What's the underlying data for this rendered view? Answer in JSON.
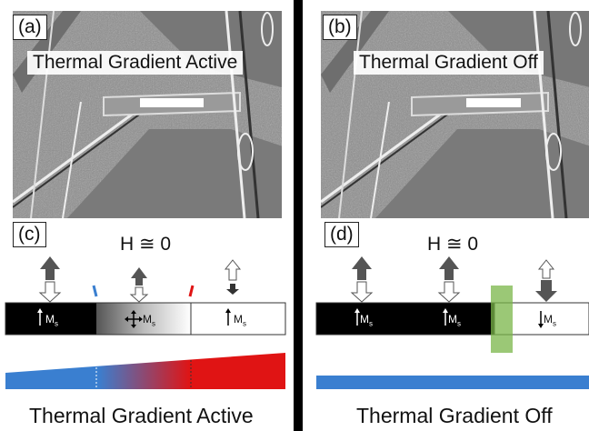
{
  "left": {
    "micrograph_letter": "(a)",
    "micrograph_title": "Thermal Gradient Active",
    "schematic_letter": "(c)",
    "field_label": "H ≅ 0",
    "domain_labels": [
      "M",
      "M",
      "M"
    ],
    "domain_label_sub": "s",
    "caption": "Thermal Gradient Active"
  },
  "right": {
    "micrograph_letter": "(b)",
    "micrograph_title": "Thermal Gradient Off",
    "schematic_letter": "(d)",
    "field_label": "H ≅ 0",
    "domain_labels": [
      "M",
      "M",
      "M"
    ],
    "domain_label_sub": "s",
    "caption": "Thermal Gradient Off"
  },
  "colors": {
    "cold": "#3a7fd0",
    "hot": "#e01414",
    "domain_wall_highlight": "#7ab648",
    "magnetized": "#000000"
  },
  "icons": [
    "up-arrow-icon",
    "down-arrow-icon",
    "four-way-arrow-icon"
  ]
}
